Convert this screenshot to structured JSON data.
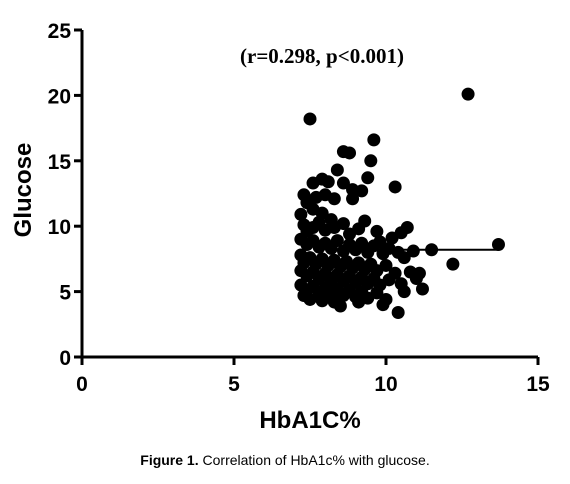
{
  "chart_data": {
    "type": "scatter",
    "title": "",
    "annotation": "(r=0.298, p<0.001)",
    "xlabel": "HbA1C%",
    "ylabel": "Glucose",
    "xlim": [
      0,
      15
    ],
    "ylim": [
      0,
      25
    ],
    "xticks": [
      0,
      5,
      10,
      15
    ],
    "yticks": [
      0,
      5,
      10,
      15,
      20,
      25
    ],
    "grid": false,
    "marker_color": "#000000",
    "points": [
      [
        7.5,
        18.2
      ],
      [
        8.6,
        15.7
      ],
      [
        8.8,
        15.6
      ],
      [
        9.6,
        16.6
      ],
      [
        9.5,
        15.0
      ],
      [
        9.4,
        13.7
      ],
      [
        10.3,
        13.0
      ],
      [
        12.7,
        20.1
      ],
      [
        7.6,
        13.3
      ],
      [
        7.9,
        13.6
      ],
      [
        8.1,
        13.4
      ],
      [
        8.4,
        14.3
      ],
      [
        8.6,
        13.3
      ],
      [
        8.9,
        12.8
      ],
      [
        9.2,
        12.7
      ],
      [
        8.9,
        12.1
      ],
      [
        7.3,
        12.4
      ],
      [
        7.4,
        11.8
      ],
      [
        7.7,
        12.2
      ],
      [
        8.0,
        12.4
      ],
      [
        8.3,
        12.1
      ],
      [
        7.6,
        11.3
      ],
      [
        7.9,
        11.0
      ],
      [
        8.2,
        10.5
      ],
      [
        7.2,
        10.9
      ],
      [
        7.3,
        10.1
      ],
      [
        7.4,
        9.6
      ],
      [
        7.6,
        9.9
      ],
      [
        7.8,
        10.3
      ],
      [
        8.0,
        9.7
      ],
      [
        8.3,
        9.9
      ],
      [
        8.6,
        10.2
      ],
      [
        8.8,
        9.4
      ],
      [
        9.1,
        9.8
      ],
      [
        9.3,
        10.4
      ],
      [
        9.7,
        9.6
      ],
      [
        10.2,
        9.1
      ],
      [
        10.5,
        9.5
      ],
      [
        10.7,
        9.9
      ],
      [
        9.8,
        8.8
      ],
      [
        7.2,
        9.0
      ],
      [
        7.4,
        8.6
      ],
      [
        7.6,
        8.9
      ],
      [
        7.8,
        8.4
      ],
      [
        8.0,
        8.7
      ],
      [
        8.2,
        8.3
      ],
      [
        8.4,
        8.9
      ],
      [
        8.6,
        8.1
      ],
      [
        8.8,
        8.6
      ],
      [
        9.0,
        8.2
      ],
      [
        9.2,
        8.7
      ],
      [
        9.4,
        8.0
      ],
      [
        9.6,
        8.5
      ],
      [
        9.9,
        7.9
      ],
      [
        10.1,
        8.3
      ],
      [
        10.4,
        8.0
      ],
      [
        10.6,
        7.6
      ],
      [
        10.9,
        8.1
      ],
      [
        11.5,
        8.2
      ],
      [
        13.7,
        8.6
      ],
      [
        12.2,
        7.1
      ],
      [
        11.0,
        6.0
      ],
      [
        10.8,
        6.5
      ],
      [
        11.2,
        5.2
      ],
      [
        7.2,
        7.8
      ],
      [
        7.3,
        7.2
      ],
      [
        7.5,
        7.6
      ],
      [
        7.7,
        7.1
      ],
      [
        7.9,
        7.5
      ],
      [
        8.1,
        7.0
      ],
      [
        8.3,
        7.4
      ],
      [
        8.5,
        6.9
      ],
      [
        8.7,
        7.3
      ],
      [
        8.9,
        6.8
      ],
      [
        9.1,
        7.2
      ],
      [
        9.3,
        6.7
      ],
      [
        9.5,
        7.1
      ],
      [
        9.7,
        6.6
      ],
      [
        10.0,
        7.0
      ],
      [
        10.3,
        6.4
      ],
      [
        7.2,
        6.6
      ],
      [
        7.4,
        6.2
      ],
      [
        7.6,
        6.5
      ],
      [
        7.8,
        6.0
      ],
      [
        8.0,
        6.4
      ],
      [
        8.2,
        5.9
      ],
      [
        8.4,
        6.3
      ],
      [
        8.6,
        5.8
      ],
      [
        8.8,
        6.2
      ],
      [
        9.0,
        5.7
      ],
      [
        9.2,
        6.1
      ],
      [
        9.4,
        5.6
      ],
      [
        9.6,
        6.0
      ],
      [
        9.8,
        5.5
      ],
      [
        10.1,
        5.9
      ],
      [
        10.5,
        5.6
      ],
      [
        7.2,
        5.5
      ],
      [
        7.4,
        5.1
      ],
      [
        7.6,
        5.4
      ],
      [
        7.8,
        4.9
      ],
      [
        8.0,
        5.3
      ],
      [
        8.2,
        4.8
      ],
      [
        8.4,
        5.2
      ],
      [
        8.6,
        4.7
      ],
      [
        8.8,
        5.1
      ],
      [
        9.0,
        4.6
      ],
      [
        9.2,
        5.0
      ],
      [
        9.4,
        4.5
      ],
      [
        9.7,
        4.9
      ],
      [
        10.0,
        4.4
      ],
      [
        7.5,
        4.4
      ],
      [
        7.9,
        4.3
      ],
      [
        8.3,
        4.2
      ],
      [
        8.5,
        3.9
      ],
      [
        9.1,
        4.2
      ],
      [
        10.4,
        3.4
      ],
      [
        9.9,
        4.0
      ],
      [
        7.3,
        4.7
      ],
      [
        11.1,
        6.4
      ],
      [
        10.6,
        5.0
      ]
    ],
    "trend_segment": [
      [
        9.8,
        8.2
      ],
      [
        13.7,
        8.2
      ]
    ]
  },
  "caption": {
    "label": "Figure 1.",
    "text": " Correlation of HbA1c% with glucose."
  }
}
